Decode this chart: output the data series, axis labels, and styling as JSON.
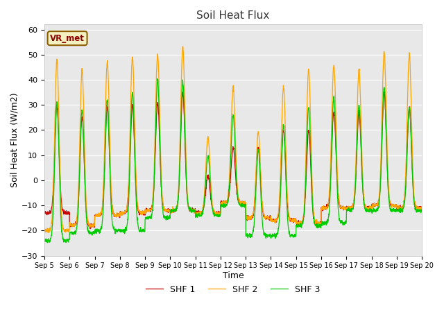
{
  "title": "Soil Heat Flux",
  "xlabel": "Time",
  "ylabel": "Soil Heat Flux (W/m2)",
  "ylim": [
    -30,
    62
  ],
  "yticks": [
    -30,
    -20,
    -10,
    0,
    10,
    20,
    30,
    40,
    50,
    60
  ],
  "line_colors": [
    "#cc0000",
    "#ffa500",
    "#00cc00"
  ],
  "line_labels": [
    "SHF 1",
    "SHF 2",
    "SHF 3"
  ],
  "annotation_text": "VR_met",
  "bg_color": "#e8e8e8",
  "fig_bg": "#ffffff",
  "n_days": 15,
  "start_day": 5,
  "daily_peaks_shf1": [
    30,
    25,
    29,
    30,
    31,
    35,
    2,
    13,
    13,
    20,
    20,
    27,
    27,
    35,
    29
  ],
  "daily_peaks_shf2": [
    48,
    44,
    47,
    49,
    50,
    53,
    17,
    37,
    19,
    37,
    44,
    46,
    44,
    51,
    50
  ],
  "daily_peaks_shf3": [
    31,
    28,
    32,
    35,
    40,
    39,
    10,
    26,
    12,
    22,
    29,
    33,
    30,
    37,
    29
  ],
  "daily_troughs_shf1": [
    -13,
    -18,
    -14,
    -13,
    -12,
    -12,
    -13,
    -9,
    -15,
    -16,
    -17,
    -11,
    -11,
    -10,
    -11
  ],
  "daily_troughs_shf2": [
    -20,
    -18,
    -14,
    -13,
    -12,
    -12,
    -13,
    -9,
    -15,
    -16,
    -17,
    -11,
    -11,
    -10,
    -11
  ],
  "daily_troughs_shf3": [
    -24,
    -21,
    -20,
    -20,
    -15,
    -12,
    -14,
    -10,
    -22,
    -22,
    -18,
    -17,
    -12,
    -12,
    -12
  ]
}
